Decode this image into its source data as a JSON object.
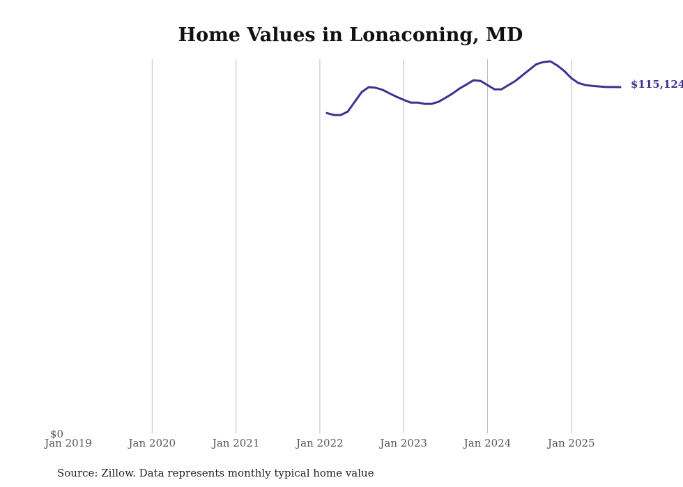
{
  "chart_data": {
    "type": "line",
    "title": "Home Values in Lonaconing, MD",
    "xlabel": "",
    "ylabel": "",
    "source": "Source: Zillow. Data represents monthly typical home value",
    "color": "#3a3391",
    "grid": "vertical",
    "legend": "none",
    "x_range": [
      "2019-01",
      "2025-08"
    ],
    "ylim": [
      0,
      124400
    ],
    "x_ticks": [
      {
        "date": "2019-01",
        "label": "Jan 2019"
      },
      {
        "date": "2020-01",
        "label": "Jan 2020"
      },
      {
        "date": "2021-01",
        "label": "Jan 2021"
      },
      {
        "date": "2022-01",
        "label": "Jan 2022"
      },
      {
        "date": "2023-01",
        "label": "Jan 2023"
      },
      {
        "date": "2024-01",
        "label": "Jan 2024"
      },
      {
        "date": "2025-01",
        "label": "Jan 2025"
      }
    ],
    "y_ticks": [
      {
        "value": 0,
        "label": "$0"
      }
    ],
    "end_label": "$115,124",
    "series": [
      {
        "name": "Typical home value",
        "x": [
          "2022-02",
          "2022-03",
          "2022-04",
          "2022-05",
          "2022-06",
          "2022-07",
          "2022-08",
          "2022-09",
          "2022-10",
          "2022-11",
          "2022-12",
          "2023-01",
          "2023-02",
          "2023-03",
          "2023-04",
          "2023-05",
          "2023-06",
          "2023-07",
          "2023-08",
          "2023-09",
          "2023-10",
          "2023-11",
          "2023-12",
          "2024-01",
          "2024-02",
          "2024-03",
          "2024-04",
          "2024-05",
          "2024-06",
          "2024-07",
          "2024-08",
          "2024-09",
          "2024-10",
          "2024-11",
          "2024-12",
          "2025-01",
          "2025-02",
          "2025-03",
          "2025-04",
          "2025-05",
          "2025-06",
          "2025-07",
          "2025-08"
        ],
        "values": [
          106500,
          105850,
          105850,
          107000,
          110250,
          113500,
          115100,
          114900,
          114200,
          113000,
          111900,
          110900,
          110000,
          110000,
          109550,
          109550,
          110250,
          111600,
          113000,
          114650,
          116000,
          117400,
          117200,
          115800,
          114400,
          114400,
          115800,
          117200,
          119050,
          120900,
          122750,
          123450,
          123700,
          122300,
          120450,
          118100,
          116500,
          115800,
          115550,
          115350,
          115150,
          115150,
          115124
        ]
      }
    ]
  }
}
